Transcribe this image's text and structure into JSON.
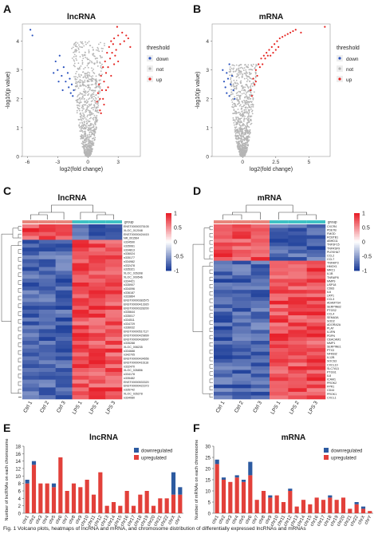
{
  "figure": {
    "caption": "Fig. 1 Volcano plots, heatmaps of lncRNA and mRNA, and chromosome distribution of differentially expressed lncRNAs and mRNAs"
  },
  "colors": {
    "down": "#2a52be",
    "not": "#b5b5b5",
    "up": "#e52421",
    "heat_high": "#e8202a",
    "heat_mid": "#ffffff",
    "heat_low": "#1e3f9a",
    "group_ctrl": "#e8867c",
    "group_lps": "#3fc1c4",
    "bar_down": "#2c5aa0",
    "bar_up": "#e2403a"
  },
  "chart_data": [
    {
      "panel": "A",
      "type": "scatter",
      "title": "lncRNA",
      "xlabel": "log2(fold change)",
      "ylabel": "-log10(p value)",
      "xticks": [
        -6,
        -3,
        0,
        3
      ],
      "yticks": [
        0,
        1,
        2,
        3,
        4
      ],
      "xlim": [
        -6.5,
        5.2
      ],
      "ylim": [
        0,
        4.6
      ],
      "legend": {
        "title": "threshold",
        "entries": [
          "down",
          "not",
          "up"
        ],
        "position": "right"
      },
      "series": [
        {
          "name": "down",
          "points": [
            [
              -5.7,
              4.4
            ],
            [
              -5.5,
              4.2
            ],
            [
              -3.2,
              3.3
            ],
            [
              -3.0,
              3.0
            ],
            [
              -2.8,
              3.5
            ],
            [
              -2.6,
              2.8
            ],
            [
              -2.4,
              3.1
            ],
            [
              -2.2,
              2.6
            ],
            [
              -2.0,
              2.9
            ],
            [
              -1.9,
              2.4
            ],
            [
              -1.8,
              2.7
            ],
            [
              -1.7,
              2.2
            ],
            [
              -1.6,
              2.5
            ],
            [
              -1.5,
              2.1
            ],
            [
              -1.4,
              2.3
            ],
            [
              -2.5,
              2.3
            ],
            [
              -2.9,
              2.6
            ],
            [
              -3.4,
              2.9
            ]
          ]
        },
        {
          "name": "up",
          "points": [
            [
              0.9,
              1.9
            ],
            [
              1.0,
              2.2
            ],
            [
              1.1,
              2.5
            ],
            [
              1.2,
              2.0
            ],
            [
              1.3,
              2.8
            ],
            [
              1.4,
              2.3
            ],
            [
              1.5,
              3.1
            ],
            [
              1.6,
              2.6
            ],
            [
              1.7,
              3.3
            ],
            [
              1.8,
              2.9
            ],
            [
              1.9,
              3.6
            ],
            [
              2.0,
              3.1
            ],
            [
              2.1,
              3.8
            ],
            [
              2.2,
              3.4
            ],
            [
              2.3,
              4.0
            ],
            [
              2.4,
              3.6
            ],
            [
              2.5,
              3.9
            ],
            [
              2.6,
              4.1
            ],
            [
              2.8,
              3.7
            ],
            [
              3.0,
              4.2
            ],
            [
              3.2,
              3.9
            ],
            [
              3.4,
              4.3
            ],
            [
              3.6,
              4.0
            ],
            [
              3.8,
              4.2
            ],
            [
              4.0,
              4.1
            ],
            [
              4.2,
              3.8
            ],
            [
              2.0,
              2.4
            ],
            [
              2.3,
              2.8
            ],
            [
              2.6,
              3.2
            ],
            [
              1.5,
              2.0
            ],
            [
              1.8,
              2.3
            ],
            [
              2.7,
              3.5
            ],
            [
              3.0,
              3.3
            ],
            [
              1.2,
              1.6
            ],
            [
              2.9,
              4.5
            ],
            [
              1.3,
              1.5
            ],
            [
              1.6,
              1.8
            ]
          ]
        },
        {
          "name": "not",
          "envelope": {
            "halfWidthAtTop": 1.6,
            "yTop": 4.0
          }
        }
      ]
    },
    {
      "panel": "B",
      "type": "scatter",
      "title": "mRNA",
      "xlabel": "log2(fold change)",
      "ylabel": "-log10(p value)",
      "xticks": [
        0.0,
        2.5,
        5.0
      ],
      "yticks": [
        0,
        1,
        2,
        3,
        4
      ],
      "xlim": [
        -2.3,
        6.6
      ],
      "ylim": [
        0,
        4.6
      ],
      "legend": {
        "title": "threshold",
        "entries": [
          "down",
          "not",
          "up"
        ],
        "position": "right"
      },
      "series": [
        {
          "name": "down",
          "points": [
            [
              -1.4,
              2.6
            ],
            [
              -1.2,
              2.9
            ],
            [
              -1.0,
              3.2
            ],
            [
              -0.9,
              2.5
            ],
            [
              -0.8,
              2.8
            ],
            [
              -1.3,
              2.4
            ],
            [
              -1.1,
              2.7
            ],
            [
              -0.7,
              2.3
            ],
            [
              -1.5,
              3.0
            ],
            [
              -1.0,
              2.1
            ],
            [
              -0.6,
              2.0
            ],
            [
              -1.2,
              2.2
            ]
          ]
        },
        {
          "name": "up",
          "points": [
            [
              0.6,
              2.3
            ],
            [
              0.8,
              2.7
            ],
            [
              1.0,
              3.0
            ],
            [
              1.2,
              3.2
            ],
            [
              1.4,
              3.4
            ],
            [
              1.6,
              3.5
            ],
            [
              1.8,
              3.6
            ],
            [
              2.0,
              3.7
            ],
            [
              2.2,
              3.8
            ],
            [
              2.4,
              3.9
            ],
            [
              2.6,
              4.0
            ],
            [
              2.8,
              4.1
            ],
            [
              3.0,
              4.15
            ],
            [
              3.2,
              4.2
            ],
            [
              3.4,
              4.25
            ],
            [
              3.6,
              4.3
            ],
            [
              3.8,
              4.35
            ],
            [
              4.0,
              4.4
            ],
            [
              0.9,
              2.5
            ],
            [
              1.1,
              2.8
            ],
            [
              1.3,
              3.1
            ],
            [
              1.5,
              3.2
            ],
            [
              1.7,
              3.4
            ],
            [
              1.9,
              3.5
            ],
            [
              2.1,
              3.5
            ],
            [
              2.3,
              3.6
            ],
            [
              2.5,
              3.7
            ],
            [
              2.7,
              3.8
            ],
            [
              4.4,
              4.3
            ],
            [
              6.2,
              4.5
            ],
            [
              0.7,
              2.1
            ],
            [
              1.0,
              2.6
            ]
          ]
        },
        {
          "name": "not",
          "envelope": {
            "halfWidthAtTop": 1.0,
            "yTop": 3.2
          }
        }
      ]
    },
    {
      "panel": "C",
      "type": "heatmap",
      "title": "lncRNA",
      "columns": [
        "Ctrl 1",
        "Ctrl 2",
        "Ctrl 3",
        "LPS 1",
        "LPS 2",
        "LPS 3"
      ],
      "group_label": "group",
      "colorbar_ticks": [
        1,
        0.5,
        0,
        -0.5,
        -1
      ],
      "row_labels": [
        "ENST00000375105",
        "XLOC_012048",
        "ENST00000424415",
        "NR_001564",
        "n334590",
        "n335061",
        "n334813",
        "n336024",
        "n335177",
        "n334982",
        "n332478",
        "n335321",
        "XLOC_026308",
        "XLOC_009546",
        "n334421",
        "n335907",
        "n334096",
        "n336187",
        "n333864",
        "ENST00000383575",
        "ENST00000413920",
        "ENST00000328200",
        "n335644",
        "n335017",
        "n334511",
        "n334729",
        "n336032",
        "ENST00000517117",
        "ENST00000429899",
        "ENST00000438997",
        "n335288",
        "XLOC_008235",
        "n334688",
        "n342705",
        "ENST00000434656",
        "ENST00000416118",
        "n332470",
        "XLOC_026856",
        "n334178",
        "n335482",
        "ENST00000533320",
        "ENST00000422373",
        "n335742",
        "XLOC_026278",
        "n334080"
      ],
      "n_down_rows": 4
    },
    {
      "panel": "D",
      "type": "heatmap",
      "title": "mRNA",
      "columns": [
        "Ctrl 1",
        "Ctrl 2",
        "Ctrl 3",
        "LPS 1",
        "LPS 2",
        "LPS 3"
      ],
      "group_label": "group",
      "colorbar_ticks": [
        1,
        0.5,
        0,
        -0.5,
        -1
      ],
      "row_labels": [
        "CXCR4",
        "PDE7B",
        "FMOD",
        "RCBTB1",
        "ABHD11",
        "TNFSF15",
        "TNFRSF9",
        "PLEKHA7",
        "CCL2",
        "CCL7",
        "TNFAIP3",
        "HMOX1",
        "MRC1",
        "IL1B",
        "TNFAIP8",
        "MMP9",
        "USP18",
        "CD83",
        "IL6",
        "LRP1",
        "CCL3",
        "ADAMTS4",
        "SERPINB2",
        "PTGS2",
        "CCL4",
        "SEMA3A",
        "SOD2",
        "ADORA2A",
        "PLAT",
        "IL1RN",
        "PDPN",
        "CEACAM1",
        "MMP1",
        "SERPINE1",
        "PTX3",
        "NFKBIZ",
        "IL12B",
        "SOCS3",
        "CXCL10",
        "SLC7A11",
        "PTGS1",
        "IL8",
        "ICAM1",
        "PROK2",
        "FPR1",
        "CD44",
        "PROK1",
        "CXCL1"
      ],
      "n_down_rows": 10
    },
    {
      "panel": "E",
      "type": "bar",
      "stacked": true,
      "title": "lncRNA",
      "ylabel": "Number of lncRNAs on each chromosome",
      "ylim": [
        0,
        18
      ],
      "yticks": [
        0,
        2,
        4,
        6,
        8,
        10,
        12,
        14,
        16,
        18
      ],
      "categories": [
        "chr1",
        "chr2",
        "chr3",
        "chr4",
        "chr5",
        "chr6",
        "chr7",
        "chr8",
        "chr9",
        "chr10",
        "chr11",
        "chr12",
        "chr13",
        "chr14",
        "chr15",
        "chr16",
        "chr17",
        "chr18",
        "chr19",
        "chr20",
        "chr21",
        "chr22",
        "chrX",
        "chrY"
      ],
      "legend": {
        "entries": [
          "downregulated",
          "upregulated"
        ],
        "position": "top-right"
      },
      "series": [
        {
          "name": "upregulated",
          "values": [
            8,
            13,
            8,
            8,
            7,
            15,
            6,
            8,
            7,
            9,
            5,
            11,
            2,
            3,
            2,
            6,
            2,
            5,
            6,
            2,
            4,
            4,
            5,
            5
          ]
        },
        {
          "name": "downregulated",
          "values": [
            1,
            1,
            0,
            0,
            1,
            0,
            0,
            0,
            0,
            0,
            0,
            0,
            0,
            0,
            0,
            0,
            0,
            0,
            0,
            0,
            0,
            0,
            6,
            2
          ]
        }
      ]
    },
    {
      "panel": "F",
      "type": "bar",
      "stacked": true,
      "title": "mRNA",
      "ylabel": "Number of mRNAs on each chromosome",
      "ylim": [
        0,
        30
      ],
      "yticks": [
        0,
        5,
        10,
        15,
        20,
        25,
        30
      ],
      "categories": [
        "chr1",
        "chr2",
        "chr3",
        "chr4",
        "chr5",
        "chr6",
        "chr7",
        "chr8",
        "chr9",
        "chr10",
        "chr11",
        "chr12",
        "chr13",
        "chr14",
        "chr15",
        "chr16",
        "chr17",
        "chr18",
        "chr19",
        "chr20",
        "chr21",
        "chr22",
        "chrX",
        "chrY"
      ],
      "legend": {
        "entries": [
          "downregulated",
          "upregulated"
        ],
        "position": "top-right"
      },
      "series": [
        {
          "name": "upregulated",
          "values": [
            22,
            15,
            14,
            16,
            14,
            17,
            6,
            10,
            7,
            8,
            5,
            10,
            3,
            6,
            4,
            7,
            6,
            7,
            6,
            7,
            2,
            4,
            2,
            1
          ]
        },
        {
          "name": "downregulated",
          "values": [
            2,
            1,
            0,
            1,
            1,
            6,
            0,
            0,
            1,
            0,
            0,
            1,
            0,
            0,
            0,
            0,
            0,
            1,
            0,
            0,
            0,
            1,
            1,
            0
          ]
        }
      ]
    }
  ]
}
